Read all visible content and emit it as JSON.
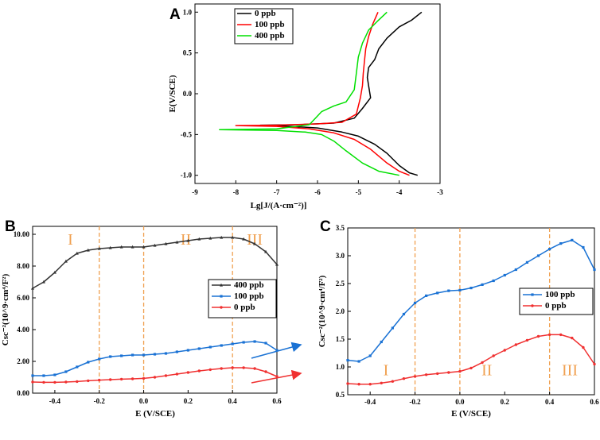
{
  "chart_data": [
    {
      "id": "A",
      "panel_label": "A",
      "type": "line",
      "title": "",
      "xlabel": "Lg[J/(A·cm⁻²)]",
      "ylabel": "E(V/SCE)",
      "xlim": [
        -9,
        -3
      ],
      "ylim": [
        -1.1,
        1.1
      ],
      "xticks": [
        -9,
        -8,
        -7,
        -6,
        -5,
        -4,
        -3
      ],
      "xtick_labels": [
        "-9",
        "-8",
        "-7",
        "-6",
        "-5",
        "-4",
        "-3"
      ],
      "yticks": [
        -1.0,
        -0.5,
        0.0,
        0.5,
        1.0
      ],
      "ytick_labels": [
        "-1.0",
        "-0.5",
        "0.0",
        "0.5",
        "1.0"
      ],
      "legend_position": "top-left",
      "series": [
        {
          "name": "0 ppb",
          "color": "#000000",
          "x": [
            -3.55,
            -3.75,
            -4.0,
            -4.3,
            -4.6,
            -5.0,
            -5.4,
            -6.0,
            -7.0,
            -7.4,
            -6.5,
            -5.6,
            -5.1,
            -4.9,
            -4.7,
            -4.75,
            -4.78,
            -4.75,
            -4.6,
            -4.5,
            -4.3,
            -4.0,
            -3.7,
            -3.45
          ],
          "y": [
            -1.0,
            -0.97,
            -0.88,
            -0.73,
            -0.62,
            -0.52,
            -0.47,
            -0.42,
            -0.39,
            -0.385,
            -0.38,
            -0.36,
            -0.3,
            -0.18,
            -0.05,
            0.1,
            0.2,
            0.32,
            0.42,
            0.55,
            0.68,
            0.82,
            0.9,
            1.0
          ]
        },
        {
          "name": "100 ppb",
          "color": "#ff0000",
          "x": [
            -3.75,
            -4.0,
            -4.3,
            -4.7,
            -5.1,
            -5.6,
            -6.2,
            -7.0,
            -8.0,
            -7.0,
            -6.0,
            -5.4,
            -5.05,
            -4.95,
            -4.9,
            -4.88,
            -4.85,
            -4.82,
            -4.75,
            -4.65,
            -4.52
          ],
          "y": [
            -1.0,
            -0.95,
            -0.85,
            -0.68,
            -0.56,
            -0.48,
            -0.43,
            -0.4,
            -0.39,
            -0.385,
            -0.37,
            -0.35,
            -0.25,
            -0.05,
            0.1,
            0.25,
            0.4,
            0.55,
            0.7,
            0.85,
            1.0
          ]
        },
        {
          "name": "400 ppb",
          "color": "#00e000",
          "x": [
            -4.0,
            -4.5,
            -4.9,
            -5.3,
            -5.6,
            -5.9,
            -6.3,
            -7.0,
            -8.4,
            -7.0,
            -6.2,
            -5.9,
            -5.6,
            -5.3,
            -5.1,
            -5.05,
            -5.0,
            -4.9,
            -4.75,
            -4.55,
            -4.3
          ],
          "y": [
            -1.0,
            -0.95,
            -0.85,
            -0.7,
            -0.58,
            -0.5,
            -0.47,
            -0.45,
            -0.44,
            -0.43,
            -0.38,
            -0.22,
            -0.15,
            -0.1,
            0.05,
            0.25,
            0.45,
            0.62,
            0.78,
            0.88,
            1.0
          ]
        }
      ]
    },
    {
      "id": "B",
      "panel_label": "B",
      "type": "line",
      "title": "",
      "xlabel": "E (V/SCE)",
      "ylabel": "Csc⁻²(10^9·cm⁴/F²)",
      "xlim": [
        -0.5,
        0.6
      ],
      "ylim": [
        0,
        10.5
      ],
      "xticks": [
        -0.4,
        -0.2,
        0.0,
        0.2,
        0.4,
        0.6
      ],
      "xtick_labels": [
        "-0.4",
        "-0.2",
        "0.0",
        "0.2",
        "0.4",
        "0.6"
      ],
      "yticks": [
        0,
        2,
        4,
        6,
        8,
        10
      ],
      "ytick_labels": [
        "0.00",
        "2.00",
        "4.00",
        "6.00",
        "8.00",
        "10.00"
      ],
      "vlines": [
        -0.2,
        0.0,
        0.4
      ],
      "regions": [
        "I",
        "II",
        "III"
      ],
      "region_x": [
        -0.33,
        0.19,
        0.5
      ],
      "legend_position": "center-right",
      "series": [
        {
          "name": "400 ppb",
          "color": "#333333",
          "marker": "triangle",
          "x": [
            -0.5,
            -0.45,
            -0.4,
            -0.35,
            -0.3,
            -0.25,
            -0.2,
            -0.15,
            -0.1,
            -0.05,
            0.0,
            0.05,
            0.1,
            0.15,
            0.2,
            0.25,
            0.3,
            0.35,
            0.4,
            0.45,
            0.5,
            0.55,
            0.6
          ],
          "y": [
            6.6,
            7.0,
            7.6,
            8.3,
            8.8,
            9.0,
            9.1,
            9.15,
            9.2,
            9.2,
            9.2,
            9.3,
            9.4,
            9.5,
            9.6,
            9.7,
            9.75,
            9.8,
            9.8,
            9.7,
            9.4,
            8.9,
            8.1
          ]
        },
        {
          "name": "100 ppb",
          "color": "#1a72d4",
          "marker": "square",
          "x": [
            -0.5,
            -0.45,
            -0.4,
            -0.35,
            -0.3,
            -0.25,
            -0.2,
            -0.15,
            -0.1,
            -0.05,
            0.0,
            0.05,
            0.1,
            0.15,
            0.2,
            0.25,
            0.3,
            0.35,
            0.4,
            0.45,
            0.5,
            0.55,
            0.6
          ],
          "y": [
            1.1,
            1.1,
            1.15,
            1.35,
            1.65,
            1.95,
            2.15,
            2.3,
            2.35,
            2.4,
            2.4,
            2.45,
            2.5,
            2.6,
            2.7,
            2.8,
            2.9,
            3.0,
            3.1,
            3.2,
            3.25,
            3.15,
            2.7
          ]
        },
        {
          "name": "0 ppb",
          "color": "#f03030",
          "marker": "circle",
          "x": [
            -0.5,
            -0.45,
            -0.4,
            -0.35,
            -0.3,
            -0.25,
            -0.2,
            -0.15,
            -0.1,
            -0.05,
            0.0,
            0.05,
            0.1,
            0.15,
            0.2,
            0.25,
            0.3,
            0.35,
            0.4,
            0.45,
            0.5,
            0.55,
            0.6
          ],
          "y": [
            0.7,
            0.68,
            0.68,
            0.7,
            0.73,
            0.78,
            0.82,
            0.85,
            0.88,
            0.9,
            0.93,
            1.0,
            1.1,
            1.2,
            1.3,
            1.4,
            1.48,
            1.55,
            1.6,
            1.6,
            1.55,
            1.35,
            1.05
          ]
        }
      ]
    },
    {
      "id": "C",
      "panel_label": "C",
      "type": "line",
      "title": "",
      "xlabel": "E (V/SCE)",
      "ylabel": "Csc⁻²(10^9·cm⁴/F²)",
      "xlim": [
        -0.5,
        0.6
      ],
      "ylim": [
        0.5,
        3.5
      ],
      "xticks": [
        -0.4,
        -0.2,
        0.0,
        0.2,
        0.4,
        0.6
      ],
      "xtick_labels": [
        "-0.4",
        "-0.2",
        "0.0",
        "0.2",
        "0.4",
        "0.6"
      ],
      "yticks": [
        0.5,
        1.0,
        1.5,
        2.0,
        2.5,
        3.0,
        3.5
      ],
      "ytick_labels": [
        "0.5",
        "1.0",
        "1.5",
        "2.0",
        "2.5",
        "3.0",
        "3.5"
      ],
      "vlines": [
        -0.2,
        0.0,
        0.4
      ],
      "regions": [
        "I",
        "II",
        "III"
      ],
      "region_x": [
        -0.33,
        0.12,
        0.49
      ],
      "region_y": 0.85,
      "legend_position": "center-right",
      "series": [
        {
          "name": "100 ppb",
          "color": "#1a72d4",
          "marker": "square",
          "x": [
            -0.5,
            -0.45,
            -0.4,
            -0.35,
            -0.3,
            -0.25,
            -0.2,
            -0.15,
            -0.1,
            -0.05,
            0.0,
            0.05,
            0.1,
            0.15,
            0.2,
            0.25,
            0.3,
            0.35,
            0.4,
            0.45,
            0.5,
            0.55,
            0.6
          ],
          "y": [
            1.12,
            1.1,
            1.2,
            1.45,
            1.7,
            1.95,
            2.15,
            2.28,
            2.33,
            2.37,
            2.38,
            2.42,
            2.48,
            2.55,
            2.65,
            2.75,
            2.88,
            3.0,
            3.12,
            3.22,
            3.28,
            3.15,
            2.75
          ]
        },
        {
          "name": "0 ppb",
          "color": "#f03030",
          "marker": "circle",
          "x": [
            -0.5,
            -0.45,
            -0.4,
            -0.35,
            -0.3,
            -0.25,
            -0.2,
            -0.15,
            -0.1,
            -0.05,
            0.0,
            0.05,
            0.1,
            0.15,
            0.2,
            0.25,
            0.3,
            0.35,
            0.4,
            0.45,
            0.5,
            0.55,
            0.6
          ],
          "y": [
            0.7,
            0.69,
            0.69,
            0.71,
            0.74,
            0.79,
            0.83,
            0.86,
            0.88,
            0.9,
            0.92,
            0.98,
            1.08,
            1.2,
            1.3,
            1.4,
            1.48,
            1.55,
            1.58,
            1.58,
            1.52,
            1.35,
            1.05
          ]
        }
      ]
    }
  ]
}
